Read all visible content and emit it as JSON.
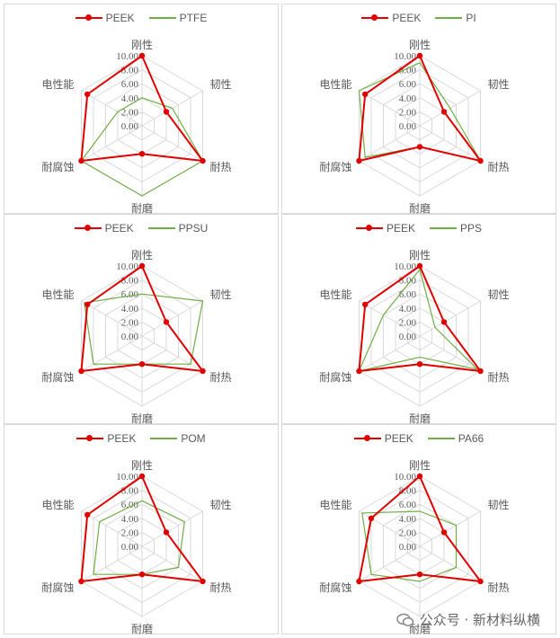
{
  "colors": {
    "peek": "#e00000",
    "other": "#70ad47",
    "grid": "#d9d9d9",
    "text": "#595959"
  },
  "axes": [
    "刚性",
    "韧性",
    "耐热",
    "耐磨",
    "耐腐蚀",
    "电性能"
  ],
  "tick_labels": [
    "0.00",
    "2.00",
    "4.00",
    "6.00",
    "8.00",
    "10.00"
  ],
  "watermark": "公众号 · 新材料纵横",
  "chart_data": [
    {
      "type": "radar",
      "ylim": [
        0,
        10
      ],
      "categories": [
        "刚性",
        "韧性",
        "耐热",
        "耐磨",
        "耐腐蚀",
        "电性能"
      ],
      "series": [
        {
          "name": "PEEK",
          "values": [
            10,
            4,
            10,
            4,
            10,
            9
          ]
        },
        {
          "name": "PTFE",
          "values": [
            4,
            5,
            10,
            10,
            10,
            4
          ]
        }
      ]
    },
    {
      "type": "radar",
      "ylim": [
        0,
        10
      ],
      "categories": [
        "刚性",
        "韧性",
        "耐热",
        "耐磨",
        "耐腐蚀",
        "电性能"
      ],
      "series": [
        {
          "name": "PEEK",
          "values": [
            10,
            4,
            10,
            3,
            10,
            9
          ]
        },
        {
          "name": "PI",
          "values": [
            9,
            5,
            10,
            3,
            9,
            10
          ]
        }
      ]
    },
    {
      "type": "radar",
      "ylim": [
        0,
        10
      ],
      "categories": [
        "刚性",
        "韧性",
        "耐热",
        "耐磨",
        "耐腐蚀",
        "电性能"
      ],
      "series": [
        {
          "name": "PEEK",
          "values": [
            10,
            4,
            10,
            4,
            10,
            9
          ]
        },
        {
          "name": "PPSU",
          "values": [
            6,
            10,
            8,
            4,
            8,
            9.5
          ]
        }
      ]
    },
    {
      "type": "radar",
      "ylim": [
        0,
        10
      ],
      "categories": [
        "刚性",
        "韧性",
        "耐热",
        "耐磨",
        "耐腐蚀",
        "电性能"
      ],
      "series": [
        {
          "name": "PEEK",
          "values": [
            10,
            4,
            10,
            4,
            10,
            9
          ]
        },
        {
          "name": "PPS",
          "values": [
            9.5,
            2.5,
            9.5,
            3,
            10,
            6
          ]
        }
      ]
    },
    {
      "type": "radar",
      "ylim": [
        0,
        10
      ],
      "categories": [
        "刚性",
        "韧性",
        "耐热",
        "耐磨",
        "耐腐蚀",
        "电性能"
      ],
      "series": [
        {
          "name": "PEEK",
          "values": [
            10,
            4,
            10,
            4,
            10,
            9
          ]
        },
        {
          "name": "POM",
          "values": [
            6.5,
            7,
            6,
            4,
            8,
            7
          ]
        }
      ]
    },
    {
      "type": "radar",
      "ylim": [
        0,
        10
      ],
      "categories": [
        "刚性",
        "韧性",
        "耐热",
        "耐磨",
        "耐腐蚀",
        "电性能"
      ],
      "series": [
        {
          "name": "PEEK",
          "values": [
            10,
            4,
            10,
            4,
            10,
            8
          ]
        },
        {
          "name": "PA66",
          "values": [
            5,
            6,
            6,
            5,
            8,
            9.5
          ]
        }
      ]
    }
  ]
}
